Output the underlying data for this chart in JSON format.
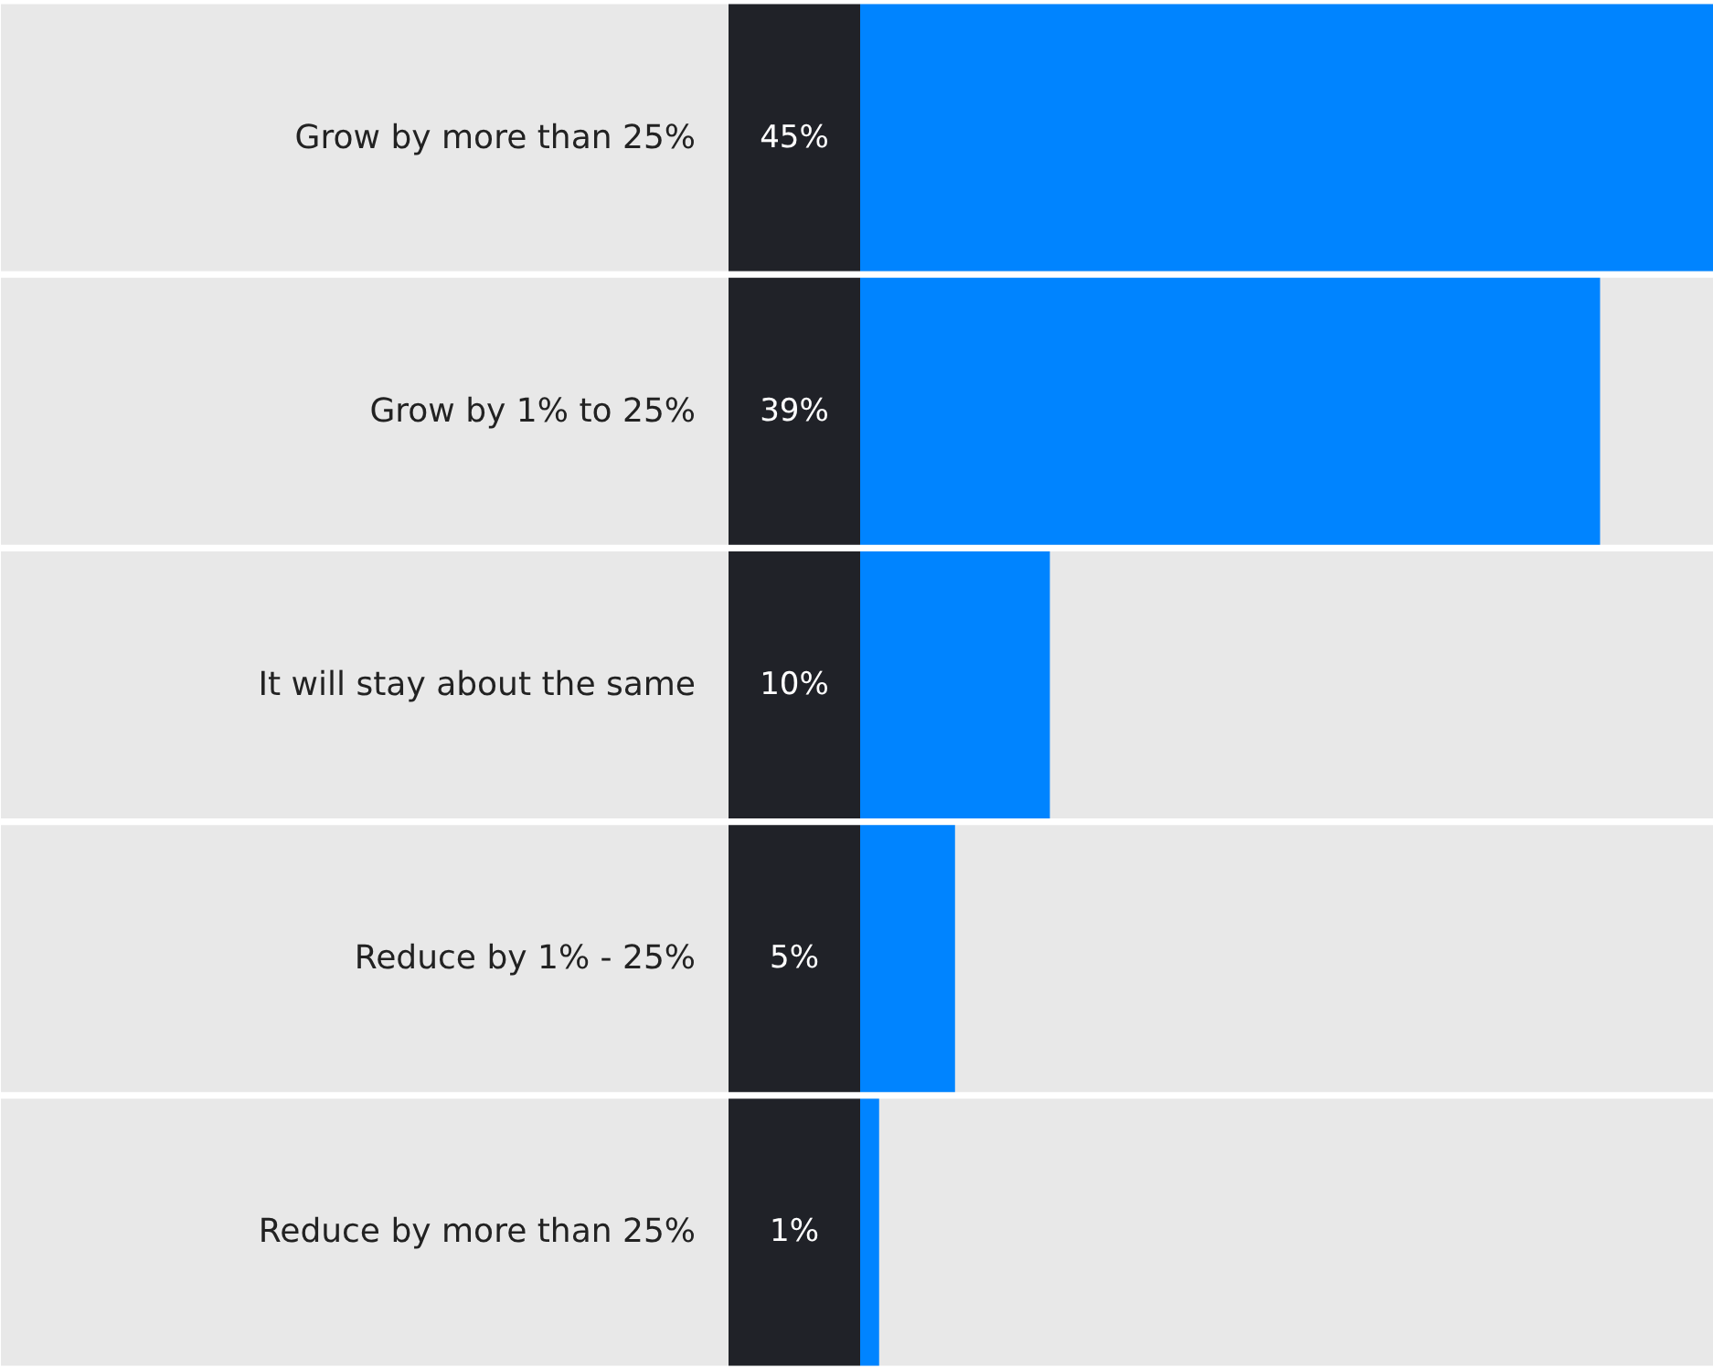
{
  "chart_data": {
    "type": "bar",
    "orientation": "horizontal",
    "categories": [
      "Grow by more than 25%",
      "Grow by 1% to 25%",
      "It will stay about the same",
      "Reduce by 1% - 25%",
      "Reduce by more than 25%"
    ],
    "values": [
      45,
      39,
      10,
      5,
      1
    ],
    "value_labels": [
      "45%",
      "39%",
      "10%",
      "5%",
      "1%"
    ],
    "color": "#0084ff"
  }
}
